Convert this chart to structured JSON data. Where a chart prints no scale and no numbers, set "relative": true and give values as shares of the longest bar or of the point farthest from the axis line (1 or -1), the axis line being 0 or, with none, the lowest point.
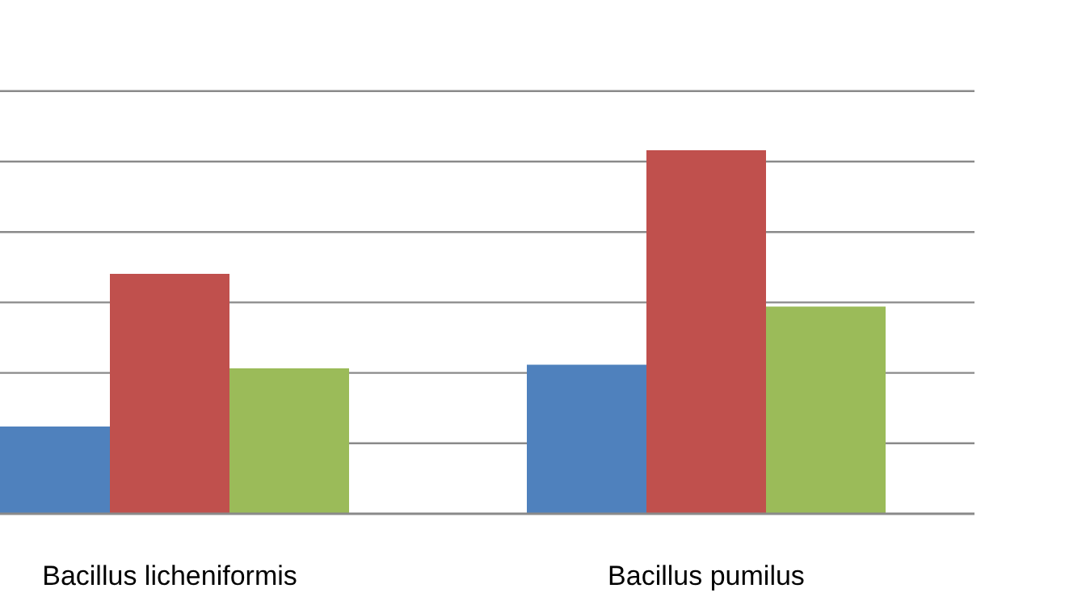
{
  "chart_data": {
    "type": "bar",
    "relative": true,
    "categories": [
      "Bacillus licheniformis",
      "Bacillus pumilus"
    ],
    "grid": true,
    "series": [
      {
        "color": "#4f81bd",
        "values": [
          0.24,
          0.41
        ]
      },
      {
        "color": "#c0504d",
        "values": [
          0.66,
          1
        ]
      },
      {
        "color": "#9bbb59",
        "values": [
          0.4,
          0.57
        ]
      }
    ]
  }
}
